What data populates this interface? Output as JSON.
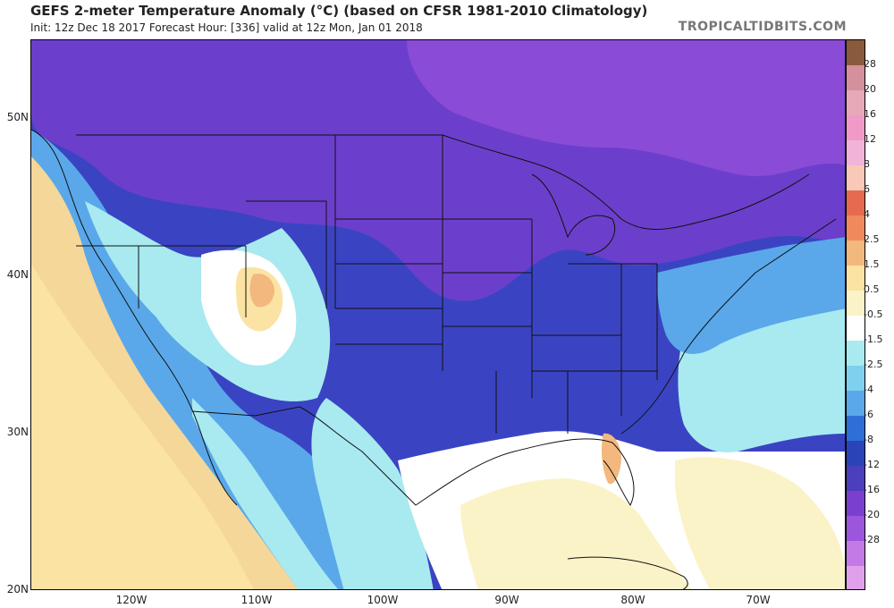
{
  "title": "GEFS 2-meter Temperature Anomaly (°C) (based on CFSR 1981-2010 Climatology)",
  "subtitle": "Init: 12z Dec 18 2017   Forecast Hour: [336]   valid at 12z Mon, Jan 01 2018",
  "credit": "TROPICALTIDBITS.COM",
  "lat_labels": [
    "50N",
    "40N",
    "30N",
    "20N"
  ],
  "lon_labels": [
    "120W",
    "110W",
    "100W",
    "90W",
    "80W",
    "70W"
  ],
  "colorbar": {
    "labels": [
      "28",
      "20",
      "16",
      "12",
      "8",
      "6",
      "4",
      "2.5",
      "1.5",
      "0.5",
      "-0.5",
      "-1.5",
      "-2.5",
      "-4",
      "-6",
      "-8",
      "-12",
      "-16",
      "-20",
      "-28"
    ],
    "colors": [
      "#8a5a3c",
      "#d4909c",
      "#e7a8b8",
      "#f09ac8",
      "#f2b3d9",
      "#f7c9b6",
      "#e66a50",
      "#f08a5c",
      "#f3b87d",
      "#fbe3a4",
      "#fbf3c8",
      "#ffffff",
      "#a8eaf0",
      "#7fd0ee",
      "#5aa8ea",
      "#2d6fd6",
      "#2a44b8",
      "#4c3fbd",
      "#7b3fd0",
      "#9c55dd",
      "#c37ae6",
      "#e0a0ec"
    ]
  },
  "map_colors": {
    "ocean_pacific": "#f5d79a",
    "very_cold": "#6b3fcb",
    "cold": "#3a44c2",
    "cool": "#2d6fd6",
    "mild_cool": "#5aa8ea",
    "light_cool": "#a8eaf0",
    "neutral": "#ffffff",
    "warm": "#fbe3a4",
    "warmer": "#f3b87d"
  }
}
